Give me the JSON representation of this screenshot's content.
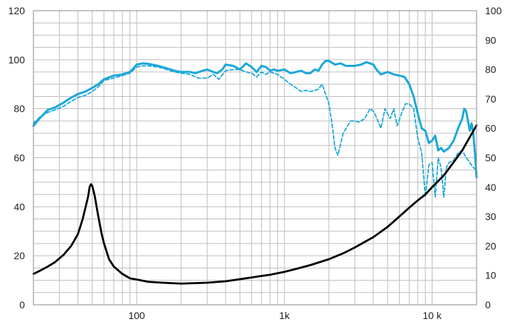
{
  "chart_data": {
    "type": "line",
    "title": "",
    "xlabel": "",
    "ylabel": "",
    "x_scale": "log",
    "xlim": [
      20,
      20000
    ],
    "ylim": [
      0,
      120
    ],
    "y2lim": [
      0,
      100
    ],
    "grid": true,
    "legend": "none",
    "x_tick_labels": [
      {
        "value": 100,
        "label": "100"
      },
      {
        "value": 1000,
        "label": "1k"
      },
      {
        "value": 10000,
        "label": "10 k"
      }
    ],
    "y_ticks": [
      0,
      20,
      40,
      60,
      80,
      100,
      120
    ],
    "y2_ticks": [
      0,
      10,
      20,
      30,
      40,
      50,
      60,
      70,
      80,
      90,
      100
    ],
    "colors": {
      "spl": "#1aa8d8",
      "impedance": "#000000",
      "grid": "#bdbdbd"
    },
    "series": [
      {
        "axis": "left",
        "style": "solid",
        "color": "#1aa8d8",
        "points": [
          [
            20,
            73
          ],
          [
            22,
            76
          ],
          [
            25,
            79.5
          ],
          [
            28,
            80.5
          ],
          [
            32,
            82.5
          ],
          [
            36,
            84.5
          ],
          [
            40,
            86
          ],
          [
            45,
            87
          ],
          [
            50,
            88.5
          ],
          [
            55,
            90
          ],
          [
            60,
            92
          ],
          [
            70,
            93.5
          ],
          [
            80,
            94
          ],
          [
            90,
            95
          ],
          [
            95,
            96.5
          ],
          [
            100,
            98
          ],
          [
            110,
            98.5
          ],
          [
            120,
            98.3
          ],
          [
            140,
            97.5
          ],
          [
            160,
            96.5
          ],
          [
            180,
            95.5
          ],
          [
            200,
            95
          ],
          [
            230,
            95
          ],
          [
            250,
            94.5
          ],
          [
            280,
            95.5
          ],
          [
            300,
            96
          ],
          [
            330,
            95
          ],
          [
            350,
            94.5
          ],
          [
            380,
            96
          ],
          [
            400,
            98
          ],
          [
            450,
            97.5
          ],
          [
            500,
            96
          ],
          [
            550,
            98.5
          ],
          [
            600,
            97
          ],
          [
            650,
            95
          ],
          [
            700,
            97.5
          ],
          [
            750,
            97
          ],
          [
            800,
            95.5
          ],
          [
            850,
            96
          ],
          [
            900,
            95.5
          ],
          [
            1000,
            96
          ],
          [
            1100,
            94.5
          ],
          [
            1200,
            95
          ],
          [
            1300,
            95.5
          ],
          [
            1400,
            94.5
          ],
          [
            1500,
            94.5
          ],
          [
            1600,
            96
          ],
          [
            1700,
            95.5
          ],
          [
            1800,
            98
          ],
          [
            1900,
            99.5
          ],
          [
            2000,
            99.5
          ],
          [
            2200,
            98
          ],
          [
            2400,
            98.5
          ],
          [
            2600,
            97.5
          ],
          [
            3000,
            97.5
          ],
          [
            3300,
            98
          ],
          [
            3600,
            99
          ],
          [
            4000,
            98
          ],
          [
            4200,
            96
          ],
          [
            4500,
            94
          ],
          [
            5000,
            95
          ],
          [
            5500,
            94
          ],
          [
            6000,
            93.5
          ],
          [
            6500,
            93
          ],
          [
            7000,
            90
          ],
          [
            7500,
            85
          ],
          [
            8000,
            78
          ],
          [
            8500,
            72
          ],
          [
            9000,
            71
          ],
          [
            9500,
            66
          ],
          [
            10000,
            67
          ],
          [
            10500,
            69
          ],
          [
            11000,
            63
          ],
          [
            11500,
            64
          ],
          [
            12000,
            62.5
          ],
          [
            13000,
            64
          ],
          [
            14000,
            67
          ],
          [
            15000,
            72
          ],
          [
            16000,
            76
          ],
          [
            16500,
            80
          ],
          [
            17000,
            79
          ],
          [
            18000,
            71
          ],
          [
            18500,
            74
          ],
          [
            19000,
            70
          ],
          [
            19500,
            62
          ],
          [
            20000,
            52
          ]
        ]
      },
      {
        "axis": "left",
        "style": "dashed",
        "color": "#1aa8d8",
        "points": [
          [
            20,
            74
          ],
          [
            22,
            76.5
          ],
          [
            25,
            78.5
          ],
          [
            28,
            79.5
          ],
          [
            32,
            81
          ],
          [
            36,
            83
          ],
          [
            40,
            84.5
          ],
          [
            45,
            85.5
          ],
          [
            50,
            87
          ],
          [
            55,
            89
          ],
          [
            60,
            91.5
          ],
          [
            70,
            92.5
          ],
          [
            80,
            93.5
          ],
          [
            90,
            94.5
          ],
          [
            100,
            97
          ],
          [
            110,
            97.5
          ],
          [
            120,
            97.5
          ],
          [
            140,
            97
          ],
          [
            160,
            96
          ],
          [
            180,
            95
          ],
          [
            200,
            94.5
          ],
          [
            230,
            94
          ],
          [
            260,
            92.5
          ],
          [
            300,
            92.5
          ],
          [
            330,
            94
          ],
          [
            360,
            92
          ],
          [
            400,
            95.5
          ],
          [
            450,
            96
          ],
          [
            500,
            96
          ],
          [
            550,
            95
          ],
          [
            600,
            94.5
          ],
          [
            650,
            93
          ],
          [
            700,
            95
          ],
          [
            750,
            94
          ],
          [
            800,
            95
          ],
          [
            900,
            94
          ],
          [
            1000,
            92
          ],
          [
            1100,
            90
          ],
          [
            1200,
            88.5
          ],
          [
            1300,
            87
          ],
          [
            1400,
            87.5
          ],
          [
            1500,
            87
          ],
          [
            1600,
            87.5
          ],
          [
            1700,
            88
          ],
          [
            1800,
            90
          ],
          [
            1900,
            86
          ],
          [
            2000,
            82
          ],
          [
            2100,
            74
          ],
          [
            2200,
            64
          ],
          [
            2300,
            61
          ],
          [
            2500,
            70
          ],
          [
            2800,
            75
          ],
          [
            3000,
            75
          ],
          [
            3200,
            74.5
          ],
          [
            3500,
            76
          ],
          [
            3800,
            80
          ],
          [
            4000,
            79
          ],
          [
            4200,
            76.5
          ],
          [
            4500,
            72
          ],
          [
            4800,
            80
          ],
          [
            5200,
            76
          ],
          [
            5500,
            80
          ],
          [
            5800,
            73
          ],
          [
            6200,
            78
          ],
          [
            6600,
            82
          ],
          [
            7000,
            82
          ],
          [
            7500,
            80
          ],
          [
            8000,
            68
          ],
          [
            8500,
            62
          ],
          [
            9000,
            44
          ],
          [
            9500,
            57
          ],
          [
            10000,
            58
          ],
          [
            10500,
            44
          ],
          [
            11000,
            60
          ],
          [
            11500,
            56
          ],
          [
            12000,
            44
          ],
          [
            12500,
            56
          ],
          [
            13000,
            58
          ],
          [
            14000,
            59
          ],
          [
            15000,
            62
          ],
          [
            16000,
            63
          ],
          [
            17000,
            60
          ],
          [
            18000,
            58
          ],
          [
            19000,
            56
          ],
          [
            20000,
            55
          ]
        ]
      },
      {
        "axis": "right",
        "style": "solid",
        "color": "#000000",
        "points": [
          [
            20,
            10.5
          ],
          [
            22,
            11.5
          ],
          [
            25,
            13
          ],
          [
            28,
            14.5
          ],
          [
            32,
            17
          ],
          [
            36,
            20
          ],
          [
            40,
            24
          ],
          [
            43,
            29
          ],
          [
            45,
            33
          ],
          [
            47,
            37
          ],
          [
            48,
            40
          ],
          [
            49,
            41
          ],
          [
            50,
            40.5
          ],
          [
            52,
            37
          ],
          [
            55,
            30
          ],
          [
            58,
            24
          ],
          [
            60,
            21
          ],
          [
            65,
            15.5
          ],
          [
            70,
            13
          ],
          [
            80,
            10.5
          ],
          [
            90,
            9
          ],
          [
            100,
            8.6
          ],
          [
            120,
            7.8
          ],
          [
            150,
            7.5
          ],
          [
            200,
            7.2
          ],
          [
            300,
            7.5
          ],
          [
            400,
            8
          ],
          [
            500,
            8.7
          ],
          [
            600,
            9.3
          ],
          [
            700,
            9.8
          ],
          [
            800,
            10.2
          ],
          [
            1000,
            11.2
          ],
          [
            1200,
            12.2
          ],
          [
            1500,
            13.5
          ],
          [
            2000,
            15.5
          ],
          [
            2500,
            17.5
          ],
          [
            3000,
            19.5
          ],
          [
            4000,
            23
          ],
          [
            5000,
            26.5
          ],
          [
            6000,
            30
          ],
          [
            7000,
            33
          ],
          [
            8000,
            35.5
          ],
          [
            9000,
            37.5
          ],
          [
            10000,
            40
          ],
          [
            12000,
            44
          ],
          [
            14000,
            48.5
          ],
          [
            16000,
            52.5
          ],
          [
            18000,
            57
          ],
          [
            20000,
            61
          ]
        ]
      }
    ]
  }
}
